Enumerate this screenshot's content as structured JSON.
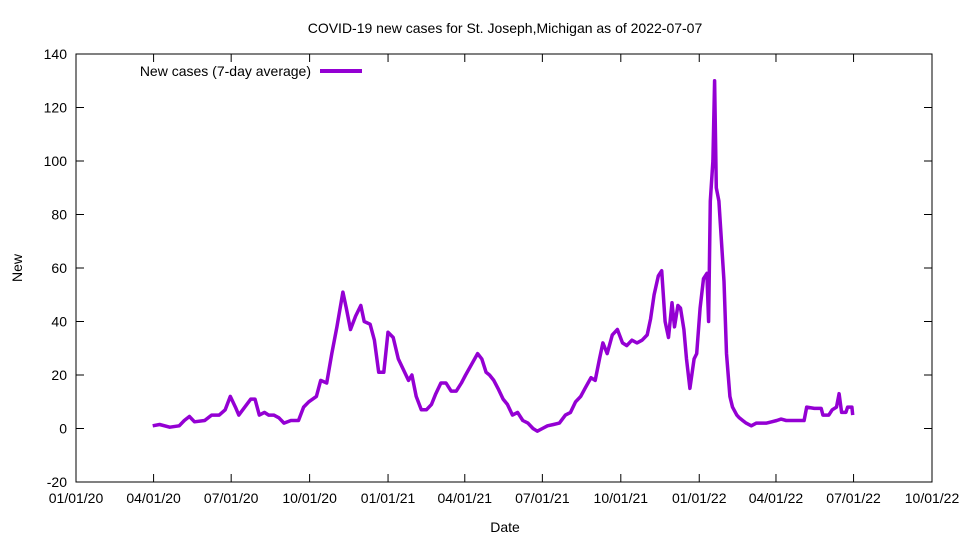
{
  "chart_data": {
    "type": "line",
    "title": "COVID-19 new cases for St. Joseph,Michigan as of 2022-07-07",
    "xlabel": "Date",
    "ylabel": "New",
    "x_units": "days since 2020-01-01",
    "xlim": [
      0,
      1004
    ],
    "ylim": [
      -20,
      140
    ],
    "yticks": [
      -20,
      0,
      20,
      40,
      60,
      80,
      100,
      120,
      140
    ],
    "xticks": [
      {
        "value": 0,
        "label": "01/01/20"
      },
      {
        "value": 91,
        "label": "04/01/20"
      },
      {
        "value": 182,
        "label": "07/01/20"
      },
      {
        "value": 274,
        "label": "10/01/20"
      },
      {
        "value": 366,
        "label": "01/01/21"
      },
      {
        "value": 456,
        "label": "04/01/21"
      },
      {
        "value": 547,
        "label": "07/01/21"
      },
      {
        "value": 639,
        "label": "10/01/21"
      },
      {
        "value": 731,
        "label": "01/01/22"
      },
      {
        "value": 821,
        "label": "04/01/22"
      },
      {
        "value": 912,
        "label": "07/01/22"
      },
      {
        "value": 1004,
        "label": "10/01/22"
      }
    ],
    "grid": false,
    "legend_position": "top-left",
    "series": [
      {
        "name": "New cases (7-day average)",
        "color": "#9400d3",
        "x": [
          90,
          98,
          110,
          121,
          127,
          133,
          139,
          151,
          159,
          168,
          175,
          181,
          187,
          191,
          198,
          205,
          210,
          215,
          221,
          226,
          232,
          238,
          244,
          252,
          261,
          267,
          273,
          282,
          287,
          294,
          300,
          306,
          313,
          317,
          322,
          328,
          334,
          338,
          345,
          350,
          355,
          361,
          366,
          372,
          378,
          384,
          390,
          394,
          399,
          405,
          411,
          417,
          422,
          428,
          434,
          440,
          446,
          452,
          457,
          464,
          471,
          476,
          481,
          485,
          490,
          495,
          501,
          506,
          512,
          518,
          524,
          530,
          536,
          541,
          547,
          553,
          560,
          567,
          574,
          580,
          586,
          592,
          597,
          604,
          609,
          614,
          618,
          623,
          629,
          635,
          641,
          646,
          652,
          658,
          664,
          670,
          674,
          678,
          683,
          687,
          691,
          695,
          699,
          702,
          706,
          709,
          713,
          716,
          720,
          725,
          728,
          732,
          736,
          740,
          742,
          744,
          747,
          749,
          751,
          754,
          756,
          760,
          763,
          767,
          770,
          775,
          778,
          782,
          786,
          792,
          798,
          804,
          810,
          816,
          822,
          827,
          833,
          845,
          854,
          857,
          866,
          874,
          876,
          883,
          887,
          892,
          895,
          898,
          903,
          905,
          910,
          911
        ],
        "y": [
          1,
          1.5,
          0.5,
          1,
          3,
          4.5,
          2.5,
          3,
          5,
          5,
          7,
          12,
          8,
          5,
          8,
          11,
          11,
          5,
          6,
          5,
          5,
          4,
          2,
          3,
          3,
          8,
          10,
          12,
          18,
          17,
          28,
          38,
          51,
          45,
          37,
          42,
          46,
          40,
          39,
          33,
          21,
          21,
          36,
          34,
          26,
          22,
          18,
          20,
          12,
          7,
          7,
          9,
          13,
          17,
          17,
          14,
          14,
          17,
          20,
          24,
          28,
          26,
          21,
          20,
          18,
          15,
          11,
          9,
          5,
          6,
          3,
          2,
          0,
          -1,
          0,
          1,
          1.5,
          2,
          5,
          6,
          10,
          12,
          15,
          19,
          18,
          26,
          32,
          28,
          35,
          37,
          32,
          31,
          33,
          32,
          33,
          35,
          41,
          50,
          57,
          59,
          40,
          34,
          47,
          38,
          46,
          45,
          37,
          26,
          15,
          26,
          28,
          45,
          56,
          58,
          40,
          85,
          100,
          130,
          90,
          85,
          75,
          55,
          28,
          12,
          8,
          5,
          4,
          3,
          2,
          1,
          2,
          2,
          2,
          2.5,
          3,
          3.5,
          3,
          3,
          3,
          8,
          7.5,
          7.5,
          5,
          5,
          7,
          8,
          13,
          6,
          6,
          8,
          8,
          5
        ]
      }
    ]
  }
}
